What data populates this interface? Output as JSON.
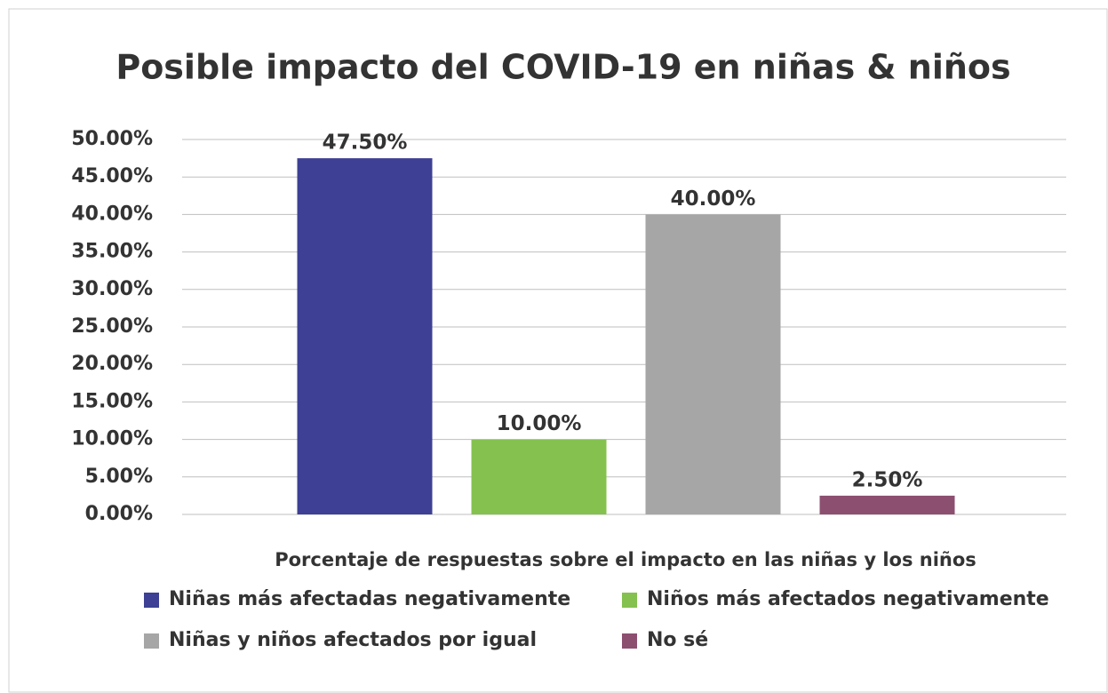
{
  "chart_data": {
    "type": "bar",
    "title": "Posible impacto del COVID-19 en niñas & niños",
    "x_label": "Porcentaje de respuestas sobre el impacto en las niñas y los niños",
    "categories": [
      null
    ],
    "series": [
      {
        "name": "Niñas más afectadas negativamente",
        "color": "#3d4094",
        "values": [
          47.5
        ],
        "value_labels": [
          "47.50%"
        ]
      },
      {
        "name": "Niños más afectados negativamente",
        "color": "#84c14f",
        "values": [
          10
        ],
        "value_labels": [
          "10.00%"
        ]
      },
      {
        "name": "Niñas y niños afectados por igual",
        "color": "#a6a6a6",
        "values": [
          40
        ],
        "value_labels": [
          "40.00%"
        ]
      },
      {
        "name": "No sé",
        "color": "#8d4f70",
        "values": [
          2.5
        ],
        "value_labels": [
          "2.50%"
        ]
      }
    ],
    "ylim": [
      0,
      50
    ],
    "yticks": [
      {
        "value": 0,
        "label": "0.00%"
      },
      {
        "value": 5,
        "label": "5.00%"
      },
      {
        "value": 10,
        "label": "10.00%"
      },
      {
        "value": 15,
        "label": "15.00%"
      },
      {
        "value": 20,
        "label": "20.00%"
      },
      {
        "value": 25,
        "label": "25.00%"
      },
      {
        "value": 30,
        "label": "30.00%"
      },
      {
        "value": 35,
        "label": "35.00%"
      },
      {
        "value": 40,
        "label": "40.00%"
      },
      {
        "value": 45,
        "label": "45.00%"
      },
      {
        "value": 50,
        "label": "50.00%"
      }
    ],
    "grid": true
  }
}
